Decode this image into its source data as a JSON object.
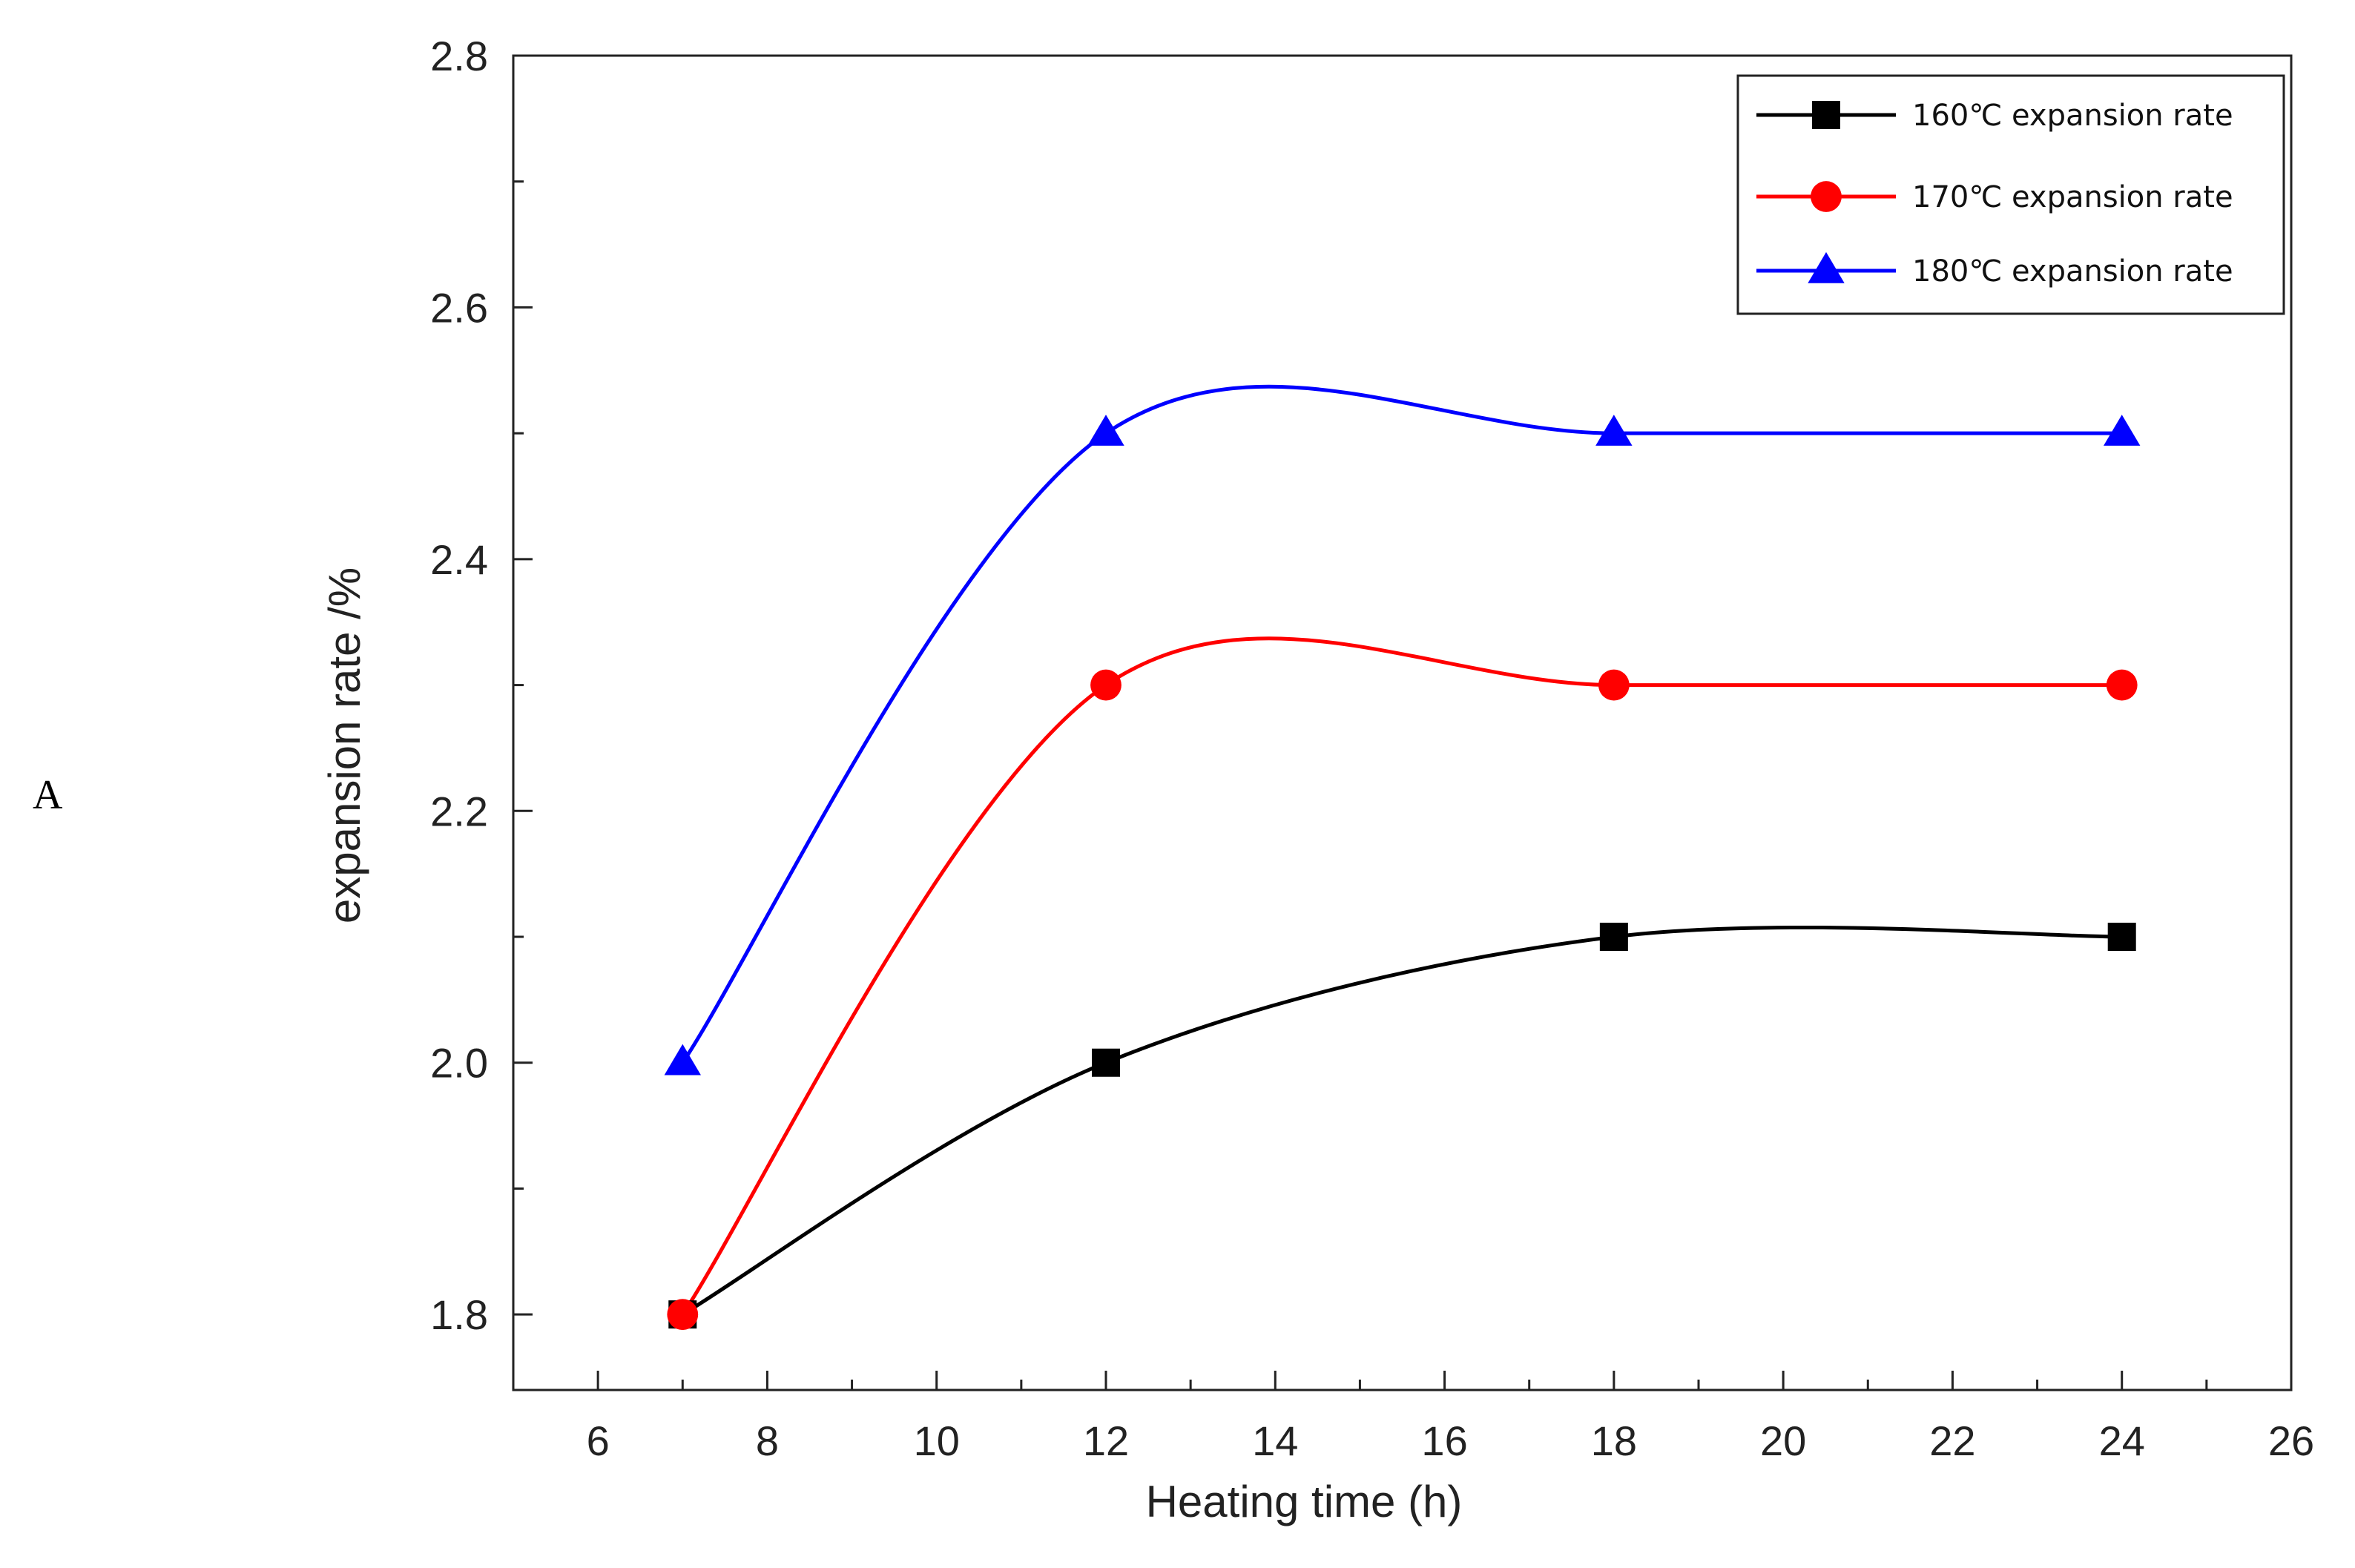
{
  "panel_label": "A",
  "chart_data": {
    "type": "line",
    "title": "",
    "xlabel": "Heating time (h)",
    "ylabel": "expansion rate /%",
    "xlim": [
      5,
      26
    ],
    "ylim": [
      1.74,
      2.8
    ],
    "xticks": [
      6,
      8,
      10,
      12,
      14,
      16,
      18,
      20,
      22,
      24,
      26
    ],
    "yticks": [
      1.8,
      2.0,
      2.2,
      2.4,
      2.6,
      2.8
    ],
    "ytick_labels": [
      "1.8",
      "2.0",
      "2.2",
      "2.4",
      "2.6",
      "2.8"
    ],
    "grid": false,
    "legend_position": "top-right",
    "x": [
      7,
      12,
      18,
      24
    ],
    "series": [
      {
        "name": "160℃ expansion rate",
        "color": "#000000",
        "marker": "square",
        "values": [
          1.8,
          2.0,
          2.1,
          2.1
        ]
      },
      {
        "name": "170℃ expansion rate",
        "color": "#ff0000",
        "marker": "circle",
        "values": [
          1.8,
          2.3,
          2.3,
          2.3
        ]
      },
      {
        "name": "180℃ expansion rate",
        "color": "#0000ff",
        "marker": "triangle",
        "values": [
          2.0,
          2.5,
          2.5,
          2.5
        ]
      }
    ]
  }
}
